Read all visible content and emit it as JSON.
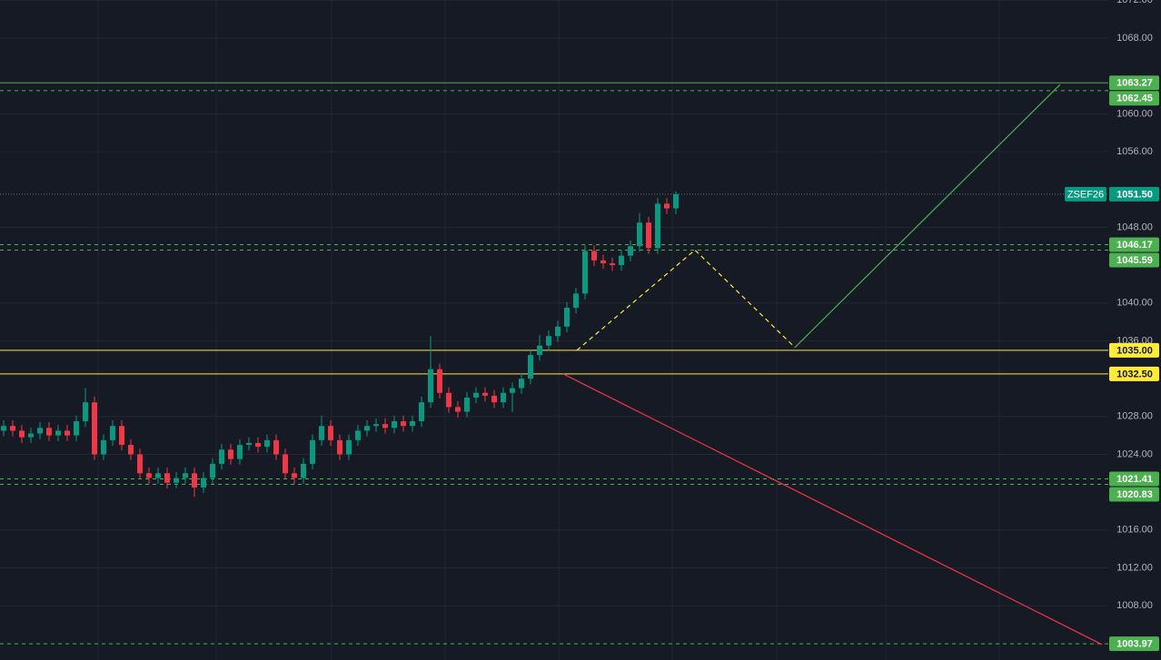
{
  "chart_data": {
    "type": "candlestick",
    "symbol": "ZSEF26",
    "open": [
      1026.5,
      1027.0,
      1026.5,
      1025.8,
      1026.2,
      1026.8,
      1026.0,
      1026.5,
      1026.0,
      1027.5,
      1029.5,
      1024.0,
      1025.5,
      1027.0,
      1025.0,
      1024.0,
      1022.0,
      1021.5,
      1022.0,
      1021.0,
      1021.5,
      1022.0,
      1020.5,
      1021.5,
      1023.0,
      1024.5,
      1023.5,
      1025.0,
      1025.2,
      1024.8,
      1025.5,
      1024.0,
      1022.0,
      1021.5,
      1023.0,
      1025.5,
      1027.0,
      1025.5,
      1024.0,
      1025.5,
      1026.5,
      1027.0,
      1027.2,
      1026.8,
      1027.5,
      1027.0,
      1027.5,
      1029.5,
      1033.0,
      1030.5,
      1029.0,
      1028.5,
      1030.0,
      1030.5,
      1030.2,
      1029.5,
      1030.5,
      1031.0,
      1032.0,
      1034.5,
      1035.5,
      1036.5,
      1037.5,
      1039.5,
      1041.0,
      1045.5,
      1044.5,
      1044.2,
      1044.0,
      1045.0,
      1046.0,
      1048.5,
      1045.8,
      1050.5,
      1050.0
    ],
    "high": [
      1027.6,
      1027.6,
      1027.1,
      1026.8,
      1027.4,
      1027.4,
      1027.1,
      1027.1,
      1028.1,
      1031.0,
      1030.1,
      1026.1,
      1027.6,
      1027.6,
      1025.6,
      1024.6,
      1022.6,
      1022.6,
      1022.6,
      1022.1,
      1022.6,
      1022.6,
      1022.1,
      1023.6,
      1025.1,
      1025.1,
      1025.6,
      1025.8,
      1025.8,
      1026.1,
      1026.1,
      1024.6,
      1022.6,
      1023.6,
      1026.1,
      1028.1,
      1027.6,
      1026.1,
      1026.1,
      1027.1,
      1027.6,
      1027.8,
      1027.8,
      1028.1,
      1028.1,
      1028.1,
      1030.1,
      1036.5,
      1033.6,
      1031.1,
      1029.6,
      1030.6,
      1031.1,
      1031.1,
      1030.8,
      1031.1,
      1031.6,
      1032.6,
      1035.1,
      1036.6,
      1037.1,
      1038.1,
      1040.1,
      1041.6,
      1046.1,
      1046.1,
      1045.1,
      1044.8,
      1045.6,
      1046.6,
      1049.5,
      1049.1,
      1051.1,
      1051.1,
      1051.8
    ],
    "low": [
      1025.9,
      1025.9,
      1025.2,
      1025.2,
      1025.6,
      1025.4,
      1025.4,
      1025.4,
      1025.4,
      1026.9,
      1023.4,
      1023.4,
      1024.9,
      1024.4,
      1023.4,
      1021.4,
      1020.9,
      1020.9,
      1020.4,
      1020.4,
      1020.9,
      1019.5,
      1019.9,
      1020.9,
      1022.4,
      1022.9,
      1022.9,
      1024.4,
      1024.2,
      1024.2,
      1023.4,
      1021.4,
      1020.9,
      1020.9,
      1022.4,
      1024.9,
      1024.9,
      1023.4,
      1023.4,
      1024.9,
      1025.9,
      1026.4,
      1026.2,
      1026.2,
      1026.4,
      1026.4,
      1026.9,
      1028.9,
      1029.9,
      1028.4,
      1027.9,
      1027.9,
      1029.4,
      1029.6,
      1028.9,
      1028.9,
      1028.5,
      1030.4,
      1031.4,
      1033.9,
      1034.9,
      1035.9,
      1036.9,
      1038.9,
      1040.4,
      1043.9,
      1043.6,
      1043.4,
      1043.4,
      1044.4,
      1045.4,
      1045.2,
      1045.2,
      1049.4,
      1049.4
    ],
    "close": [
      1027.0,
      1026.5,
      1025.8,
      1026.2,
      1026.8,
      1026.0,
      1026.5,
      1026.0,
      1027.5,
      1029.5,
      1024.0,
      1025.5,
      1027.0,
      1025.0,
      1024.0,
      1022.0,
      1021.5,
      1022.0,
      1021.0,
      1021.5,
      1022.0,
      1020.5,
      1021.5,
      1023.0,
      1024.5,
      1023.5,
      1025.0,
      1025.2,
      1024.8,
      1025.5,
      1024.0,
      1022.0,
      1021.5,
      1023.0,
      1025.5,
      1027.0,
      1025.5,
      1024.0,
      1025.5,
      1026.5,
      1027.0,
      1027.2,
      1026.8,
      1027.5,
      1027.0,
      1027.5,
      1029.5,
      1033.0,
      1030.5,
      1029.0,
      1028.5,
      1030.0,
      1030.5,
      1030.2,
      1029.5,
      1030.5,
      1031.0,
      1032.0,
      1034.5,
      1035.5,
      1036.5,
      1037.5,
      1039.5,
      1041.0,
      1045.5,
      1044.5,
      1044.2,
      1044.0,
      1045.0,
      1046.0,
      1048.5,
      1045.8,
      1050.5,
      1050.0,
      1051.5
    ],
    "up_color": "#089981",
    "down_color": "#f23645",
    "ylim": [
      1002.26,
      1072.03
    ],
    "yticks": [
      {
        "value": 1072,
        "label": "1072.00"
      },
      {
        "value": 1068,
        "label": "1068.00"
      },
      {
        "value": 1060,
        "label": "1060.00"
      },
      {
        "value": 1056,
        "label": "1056.00"
      },
      {
        "value": 1048,
        "label": "1048.00"
      },
      {
        "value": 1040,
        "label": "1040.00"
      },
      {
        "value": 1036,
        "label": "1036.00"
      },
      {
        "value": 1028,
        "label": "1028.00"
      },
      {
        "value": 1024,
        "label": "1024.00"
      },
      {
        "value": 1016,
        "label": "1016.00"
      },
      {
        "value": 1012,
        "label": "1012.00"
      },
      {
        "value": 1008,
        "label": "1008.00"
      }
    ],
    "grid": true,
    "last_price": {
      "value": 1051.5,
      "label": "1051.50",
      "color": "#089981"
    },
    "levels": [
      {
        "value": 1063.27,
        "label": "1063.27",
        "color": "#4caf50",
        "dashed": false
      },
      {
        "value": 1062.45,
        "label": "1062.45",
        "color": "#4caf50",
        "dashed": true
      },
      {
        "value": 1046.17,
        "label": "1046.17",
        "color": "#4caf50",
        "dashed": true
      },
      {
        "value": 1045.59,
        "label": "1045.59",
        "color": "#4caf50",
        "dashed": true
      },
      {
        "value": 1035,
        "label": "1035.00",
        "color": "#ffeb3b",
        "dashed": false
      },
      {
        "value": 1032.5,
        "label": "1032.50",
        "color": "#ffeb3b",
        "dashed": false
      },
      {
        "value": 1021.41,
        "label": "1021.41",
        "color": "#4caf50",
        "dashed": true
      },
      {
        "value": 1020.83,
        "label": "1020.83",
        "color": "#4caf50",
        "dashed": true
      },
      {
        "value": 1003.97,
        "label": "1003.97",
        "color": "#4caf50",
        "dashed": true
      }
    ],
    "drawings": [
      {
        "color": "#ffeb3b",
        "dashed": true,
        "x": [
          63.1,
          76.1,
          87.1
        ],
        "y": [
          1035.0,
          1045.6,
          1035.3
        ]
      },
      {
        "color": "#4caf50",
        "dashed": false,
        "x": [
          87.1,
          116.3
        ],
        "y": [
          1035.3,
          1063.1
        ]
      },
      {
        "color": "#f23645",
        "dashed": false,
        "x": [
          61.6,
          120.9
        ],
        "y": [
          1032.5,
          1003.9
        ]
      }
    ]
  }
}
